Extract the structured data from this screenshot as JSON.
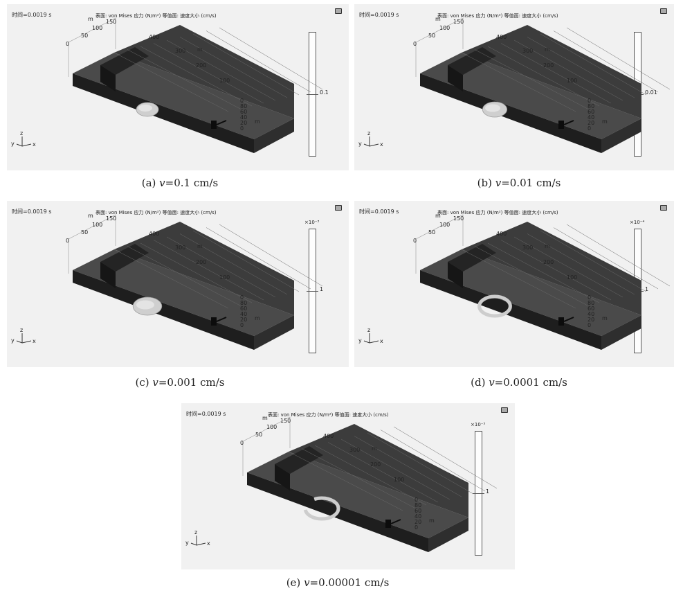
{
  "figure": {
    "panels": [
      {
        "id": "a",
        "time": "时间=0.0019 s",
        "surface": "表面: von Mises 应力 (N/m²)  等值面: 速度大小 (cm/s)",
        "colorbar_value": "0.1",
        "colorbar_exponent": "",
        "caption_prefix": "(a) ",
        "caption_var": "v",
        "caption_rest": "=0.1 cm/s",
        "cloud": "blob",
        "cloud_size": 1.0
      },
      {
        "id": "b",
        "time": "时间=0.0019 s",
        "surface": "表面: von Mises 应力 (N/m²)  等值面: 速度大小 (cm/s)",
        "colorbar_value": "0.01",
        "colorbar_exponent": "",
        "caption_prefix": "(b) ",
        "caption_var": "v",
        "caption_rest": "=0.01 cm/s",
        "cloud": "blob",
        "cloud_size": 1.1
      },
      {
        "id": "c",
        "time": "时间=0.0019 s",
        "surface": "表面: von Mises 应力 (N/m²)  等值面: 速度大小 (cm/s)",
        "colorbar_value": "1",
        "colorbar_exponent": "×10⁻³",
        "caption_prefix": "(c) ",
        "caption_var": "v",
        "caption_rest": "=0.001 cm/s",
        "cloud": "blob",
        "cloud_size": 1.3
      },
      {
        "id": "d",
        "time": "时间=0.0019 s",
        "surface": "表面: von Mises 应力 (N/m²)  等值面: 速度大小 (cm/s)",
        "colorbar_value": "1",
        "colorbar_exponent": "×10⁻⁴",
        "caption_prefix": "(d) ",
        "caption_var": "v",
        "caption_rest": "=0.0001 cm/s",
        "cloud": "ring",
        "cloud_size": 1.4
      },
      {
        "id": "e",
        "time": "时间=0.0019 s",
        "surface": "表面: von Mises 应力 (N/m²)  等值面: 速度大小 (cm/s)",
        "colorbar_value": "1",
        "colorbar_exponent": "×10⁻⁵",
        "caption_prefix": "(e) ",
        "caption_var": "v",
        "caption_rest": "=0.00001 cm/s",
        "cloud": "ring-open",
        "cloud_size": 1.5
      }
    ],
    "axis_labels": {
      "width_ticks": [
        "0",
        "50",
        "100",
        "150"
      ],
      "width_unit": "m",
      "length_ticks": [
        "400",
        "300",
        "200",
        "100"
      ],
      "length_unit": "m",
      "height_ticks": [
        "0",
        "80",
        "60",
        "40",
        "20",
        "0"
      ],
      "height_unit": "m",
      "triad_y": "y",
      "triad_z": "z",
      "triad_x": "x"
    }
  }
}
